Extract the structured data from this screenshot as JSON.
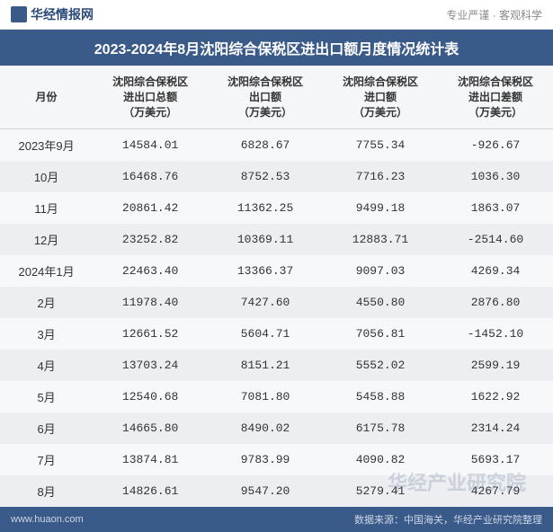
{
  "header": {
    "logo_text": "华经情报网",
    "tagline": "专业严谨 · 客观科学"
  },
  "title": "2023-2024年8月沈阳综合保税区进出口额月度情况统计表",
  "columns": [
    "月份",
    "沈阳综合保税区\n进出口总额\n（万美元）",
    "沈阳综合保税区\n出口额\n（万美元）",
    "沈阳综合保税区\n进口额\n（万美元）",
    "沈阳综合保税区\n进出口差额\n（万美元）"
  ],
  "rows": [
    {
      "month": "2023年9月",
      "total": "14584.01",
      "export": "6828.67",
      "import": "7755.34",
      "diff": "-926.67",
      "neg": true
    },
    {
      "month": "10月",
      "total": "16468.76",
      "export": "8752.53",
      "import": "7716.23",
      "diff": "1036.30",
      "neg": false
    },
    {
      "month": "11月",
      "total": "20861.42",
      "export": "11362.25",
      "import": "9499.18",
      "diff": "1863.07",
      "neg": false
    },
    {
      "month": "12月",
      "total": "23252.82",
      "export": "10369.11",
      "import": "12883.71",
      "diff": "-2514.60",
      "neg": true
    },
    {
      "month": "2024年1月",
      "total": "22463.40",
      "export": "13366.37",
      "import": "9097.03",
      "diff": "4269.34",
      "neg": false
    },
    {
      "month": "2月",
      "total": "11978.40",
      "export": "7427.60",
      "import": "4550.80",
      "diff": "2876.80",
      "neg": false
    },
    {
      "month": "3月",
      "total": "12661.52",
      "export": "5604.71",
      "import": "7056.81",
      "diff": "-1452.10",
      "neg": true
    },
    {
      "month": "4月",
      "total": "13703.24",
      "export": "8151.21",
      "import": "5552.02",
      "diff": "2599.19",
      "neg": false
    },
    {
      "month": "5月",
      "total": "12540.68",
      "export": "7081.80",
      "import": "5458.88",
      "diff": "1622.92",
      "neg": false
    },
    {
      "month": "6月",
      "total": "14665.80",
      "export": "8490.02",
      "import": "6175.78",
      "diff": "2314.24",
      "neg": false
    },
    {
      "month": "7月",
      "total": "13874.81",
      "export": "9783.99",
      "import": "4090.82",
      "diff": "5693.17",
      "neg": false
    },
    {
      "month": "8月",
      "total": "14826.61",
      "export": "9547.20",
      "import": "5279.41",
      "diff": "4267.79",
      "neg": false
    }
  ],
  "footer": {
    "site": "www.huaon.com",
    "source": "数据来源：中国海关，华经产业研究院整理"
  },
  "watermark": "华经产业研究院",
  "style": {
    "title_bg": "#3a5a8a",
    "title_color": "#ffffff",
    "header_row_bg": "#f5f6f8",
    "row_odd_bg": "#f7f8fa",
    "row_even_bg": "#eceef2",
    "text_color": "#333333",
    "negative_color": "#2a8a8a",
    "footer_bg": "#3a5a8a",
    "footer_color": "#cdd6e4",
    "title_fontsize": 16,
    "header_fontsize": 12,
    "cell_fontsize": 13,
    "footer_fontsize": 11
  }
}
